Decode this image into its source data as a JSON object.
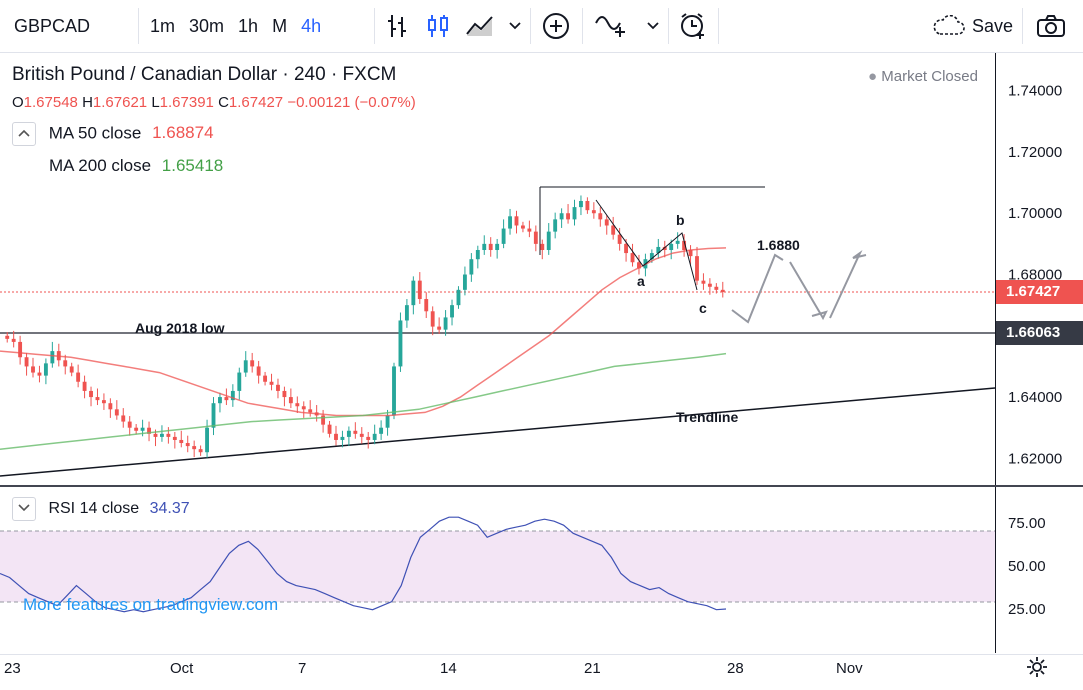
{
  "toolbar": {
    "symbol": "GBPCAD",
    "timeframes": [
      "1m",
      "30m",
      "1h",
      "M",
      "4h"
    ],
    "active_timeframe": "4h",
    "save_label": "Save",
    "icons": [
      "bar-chart-icon",
      "candles-icon",
      "area-chart-icon",
      "chevron-down-icon",
      "plus-circle-icon",
      "indicator-icon",
      "alarm-icon",
      "cloud-icon",
      "camera-icon"
    ]
  },
  "header": {
    "title": "British Pound / Canadian Dollar · 240 · FXCM",
    "market_status": "Market Closed",
    "ohlc": {
      "o_label": "O",
      "o": "1.67548",
      "h_label": "H",
      "h": "1.67621",
      "l_label": "L",
      "l": "1.67391",
      "c_label": "C",
      "c": "1.67427",
      "change": "−0.00121 (−0.07%)"
    },
    "ma50": {
      "label": "MA  50 close",
      "value": "1.68874"
    },
    "ma200": {
      "label": "MA  200 close",
      "value": "1.65418"
    }
  },
  "rsi_legend": {
    "label": "RSI  14 close",
    "value": "34.37"
  },
  "watermark": "More features on tradingview.com",
  "colors": {
    "up": "#26a69a",
    "down": "#ef5350",
    "ma50": "#ef5350",
    "ma200": "#66bb6a",
    "rsi": "#3f51b5",
    "rsi_band": "#f3e5f5",
    "price_tag": "#ef5350",
    "level_tag": "#363a45"
  },
  "chart_data": [
    {
      "type": "candlestick",
      "title": "British Pound / Canadian Dollar · 240 · FXCM",
      "y_ticks": [
        "1.74000",
        "1.72000",
        "1.70000",
        "1.68000",
        "1.66000",
        "1.64000",
        "1.62000"
      ],
      "ylim": [
        1.6113,
        1.7523
      ],
      "x_ticks": [
        "23",
        "Oct",
        "7",
        "14",
        "21",
        "28",
        "Nov"
      ],
      "price_tag": "1.67427",
      "level_tag": "1.66063",
      "closes": [
        1.659,
        1.658,
        1.653,
        1.65,
        1.648,
        1.647,
        1.651,
        1.655,
        1.652,
        1.65,
        1.648,
        1.645,
        1.642,
        1.64,
        1.639,
        1.638,
        1.636,
        1.634,
        1.632,
        1.63,
        1.629,
        1.63,
        1.628,
        1.627,
        1.628,
        1.627,
        1.626,
        1.625,
        1.624,
        1.623,
        1.622,
        1.63,
        1.638,
        1.64,
        1.639,
        1.642,
        1.648,
        1.652,
        1.65,
        1.647,
        1.645,
        1.644,
        1.642,
        1.64,
        1.638,
        1.637,
        1.636,
        1.635,
        1.634,
        1.631,
        1.628,
        1.626,
        1.627,
        1.629,
        1.628,
        1.627,
        1.626,
        1.628,
        1.63,
        1.634,
        1.65,
        1.665,
        1.67,
        1.678,
        1.672,
        1.668,
        1.663,
        1.662,
        1.666,
        1.67,
        1.675,
        1.68,
        1.685,
        1.688,
        1.69,
        1.688,
        1.69,
        1.695,
        1.699,
        1.696,
        1.695,
        1.694,
        1.69,
        1.688,
        1.694,
        1.698,
        1.7,
        1.698,
        1.702,
        1.704,
        1.701,
        1.7,
        1.698,
        1.696,
        1.693,
        1.69,
        1.687,
        1.684,
        1.682,
        1.685,
        1.687,
        1.689,
        1.688,
        1.69,
        1.691,
        1.688,
        1.686,
        1.678,
        1.677,
        1.676,
        1.675,
        1.6743
      ],
      "ma50": [
        1.655,
        1.6545,
        1.654,
        1.6535,
        1.653,
        1.652,
        1.651,
        1.65,
        1.649,
        1.648,
        1.646,
        1.644,
        1.642,
        1.64,
        1.638,
        1.637,
        1.636,
        1.635,
        1.6345,
        1.634,
        1.634,
        1.634,
        1.634,
        1.6345,
        1.635,
        1.637,
        1.64,
        1.644,
        1.648,
        1.652,
        1.656,
        1.66,
        1.665,
        1.67,
        1.675,
        1.679,
        1.682,
        1.685,
        1.687,
        1.688,
        1.6885,
        1.6887
      ],
      "ma200": [
        1.623,
        1.624,
        1.625,
        1.626,
        1.627,
        1.628,
        1.629,
        1.63,
        1.631,
        1.632,
        1.6325,
        1.633,
        1.6335,
        1.634,
        1.635,
        1.636,
        1.638,
        1.64,
        1.642,
        1.644,
        1.646,
        1.648,
        1.65,
        1.651,
        1.652,
        1.653,
        1.6542
      ],
      "annotations": {
        "a": "a",
        "b": "b",
        "c": "c",
        "target": "1.6880",
        "aug_low": "Aug 2018 low",
        "trendline": "Trendline"
      }
    },
    {
      "type": "line",
      "title": "RSI 14 close",
      "y_ticks": [
        "75.00",
        "50.00",
        "25.00"
      ],
      "ylim": [
        12,
        95
      ],
      "band": [
        30,
        70
      ],
      "values": [
        52,
        50,
        46,
        42,
        40,
        38,
        36,
        41,
        46,
        42,
        38,
        35,
        34,
        33,
        34,
        33,
        34,
        35,
        36,
        38,
        40,
        44,
        48,
        55,
        62,
        66,
        68,
        64,
        58,
        52,
        48,
        46,
        45,
        44,
        42,
        40,
        38,
        36,
        35,
        34,
        36,
        38,
        46,
        60,
        70,
        74,
        78,
        80,
        80,
        78,
        76,
        70,
        72,
        74,
        75,
        76,
        78,
        79,
        78,
        76,
        72,
        70,
        68,
        66,
        60,
        52,
        48,
        46,
        44,
        45,
        42,
        40,
        38,
        37,
        36,
        34,
        34.37
      ]
    }
  ]
}
